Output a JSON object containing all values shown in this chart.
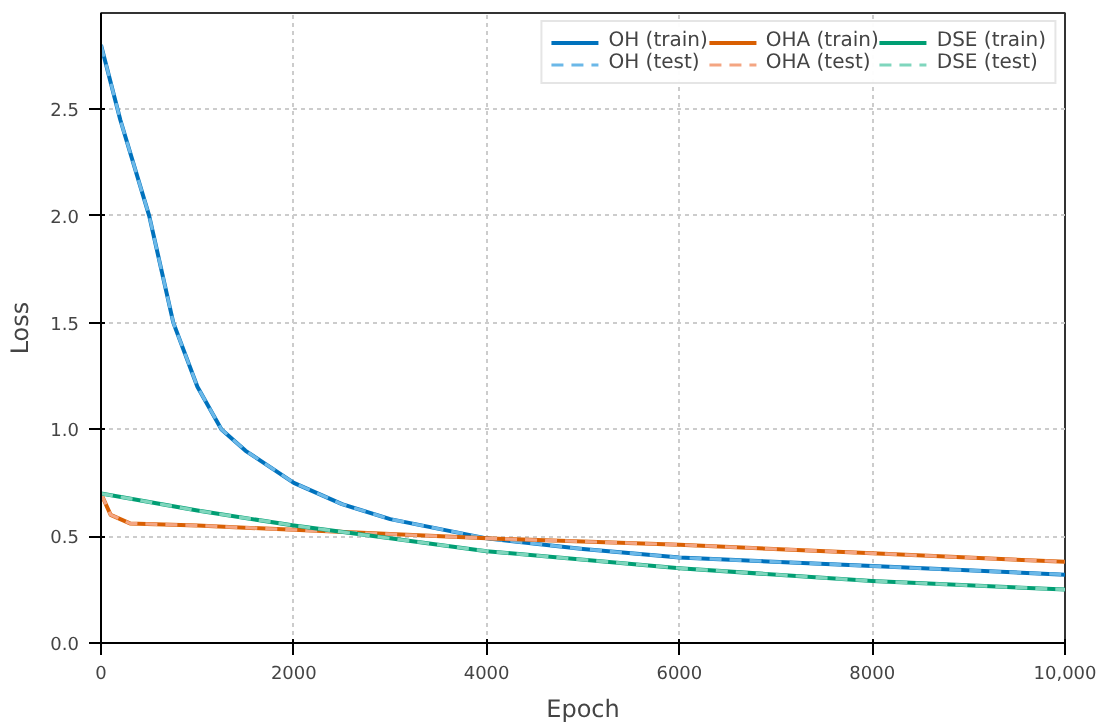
{
  "chart_data": {
    "type": "line",
    "xlabel": "Epoch",
    "ylabel": "Loss",
    "xlim": [
      0,
      10000
    ],
    "ylim": [
      0,
      2.95
    ],
    "xticks": [
      0,
      2000,
      4000,
      6000,
      8000,
      {
        "value": 10000,
        "label": "10,000"
      }
    ],
    "yticks": [
      {
        "value": 0,
        "label": "0.0"
      },
      0.5,
      {
        "value": 1,
        "label": "1.0"
      },
      1.5,
      {
        "value": 2,
        "label": "2.0"
      },
      2.5
    ],
    "grid": true,
    "legend": "top right",
    "series": [
      {
        "name": "OH (train)",
        "color": "#0072bd",
        "line_style": "solid",
        "x": [
          0,
          200,
          500,
          750,
          1000,
          1250,
          1500,
          2000,
          2500,
          3000,
          4000,
          5000,
          6000,
          8000,
          10000
        ],
        "values": [
          2.8,
          2.45,
          2.0,
          1.5,
          1.2,
          1.0,
          0.9,
          0.75,
          0.65,
          0.58,
          0.49,
          0.44,
          0.4,
          0.36,
          0.32
        ]
      },
      {
        "name": "OH (test)",
        "color": "#6bb8e8",
        "line_style": "dashed",
        "x": [
          0,
          200,
          500,
          750,
          1000,
          1250,
          1500,
          2000,
          2500,
          3000,
          4000,
          5000,
          6000,
          8000,
          10000
        ],
        "values": [
          2.8,
          2.45,
          2.0,
          1.5,
          1.2,
          1.0,
          0.9,
          0.75,
          0.65,
          0.58,
          0.49,
          0.44,
          0.4,
          0.36,
          0.32
        ]
      },
      {
        "name": "OHA (train)",
        "color": "#d95f02",
        "line_style": "solid",
        "x": [
          0,
          100,
          300,
          1000,
          2000,
          4000,
          6000,
          8000,
          10000
        ],
        "values": [
          0.7,
          0.6,
          0.56,
          0.55,
          0.53,
          0.49,
          0.46,
          0.42,
          0.38
        ]
      },
      {
        "name": "OHA (test)",
        "color": "#f4a582",
        "line_style": "dashed",
        "x": [
          0,
          100,
          300,
          1000,
          2000,
          4000,
          6000,
          8000,
          10000
        ],
        "values": [
          0.7,
          0.6,
          0.56,
          0.55,
          0.53,
          0.49,
          0.46,
          0.42,
          0.38
        ]
      },
      {
        "name": "DSE (train)",
        "color": "#009e73",
        "line_style": "solid",
        "x": [
          0,
          1000,
          2000,
          3000,
          4000,
          6000,
          8000,
          10000
        ],
        "values": [
          0.7,
          0.62,
          0.55,
          0.49,
          0.43,
          0.35,
          0.29,
          0.25
        ]
      },
      {
        "name": "DSE (test)",
        "color": "#7fd6bd",
        "line_style": "dashed",
        "x": [
          0,
          1000,
          2000,
          3000,
          4000,
          6000,
          8000,
          10000
        ],
        "values": [
          0.7,
          0.62,
          0.55,
          0.49,
          0.43,
          0.35,
          0.29,
          0.25
        ]
      }
    ]
  }
}
